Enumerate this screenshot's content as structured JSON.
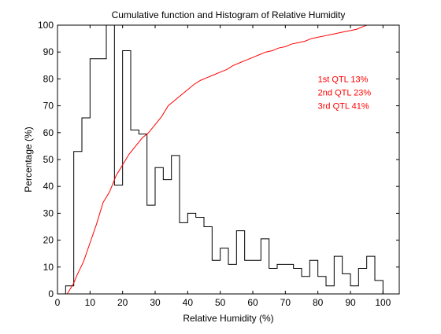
{
  "chart_data": {
    "type": "line",
    "title": "Cumulative function and Histogram of Relative Humidity",
    "xlabel": "Relative Humidity (%)",
    "ylabel": "Percentage (%)",
    "xlim": [
      0,
      105
    ],
    "ylim": [
      0,
      100
    ],
    "x_ticks": [
      0,
      10,
      20,
      30,
      40,
      50,
      60,
      70,
      80,
      90,
      100
    ],
    "y_ticks": [
      0,
      10,
      20,
      30,
      40,
      50,
      60,
      70,
      80,
      90,
      100
    ],
    "grid": false,
    "series": [
      {
        "kind": "histogram-stairs",
        "color": "#000000",
        "bin_edges": [
          2.5,
          5,
          7.5,
          10,
          12.5,
          15,
          17.5,
          20,
          22.5,
          25,
          27.5,
          30,
          32.5,
          35,
          37.5,
          40,
          42.5,
          45,
          47.5,
          50,
          52.5,
          55,
          57.5,
          60,
          62.5,
          65,
          67.5,
          70,
          72.5,
          75,
          77.5,
          80,
          82.5,
          85,
          87.5,
          90,
          92.5,
          95,
          97.5,
          100
        ],
        "values": [
          3,
          53,
          65.5,
          87.5,
          87.5,
          100,
          40.5,
          90.5,
          61,
          59.5,
          33,
          47,
          42.5,
          51.5,
          26.5,
          30,
          28.5,
          25,
          12.5,
          17,
          11,
          23.5,
          12.5,
          12.5,
          20.5,
          9.5,
          11,
          11,
          9.5,
          6.5,
          12.5,
          6.5,
          3,
          14,
          7.5,
          3,
          9.5,
          14,
          5
        ]
      },
      {
        "kind": "cumulative",
        "color": "#ff0000",
        "x": [
          0,
          2,
          3,
          4,
          5,
          6,
          8,
          10,
          12,
          14,
          16,
          17,
          18,
          19,
          20,
          22,
          24,
          26,
          28,
          30,
          32,
          34,
          36,
          38,
          40,
          42,
          44,
          46,
          48,
          50,
          52,
          54,
          56,
          58,
          60,
          62,
          64,
          66,
          68,
          70,
          72,
          74,
          76,
          78,
          80,
          82,
          84,
          86,
          88,
          90,
          92,
          94,
          95,
          97,
          100
        ],
        "y": [
          0,
          0,
          0,
          2,
          4,
          7,
          12,
          19,
          26,
          34,
          38,
          41,
          44,
          46,
          48,
          52,
          55,
          58,
          60,
          63,
          66,
          70,
          72,
          74,
          76,
          78,
          79.5,
          80.5,
          81.5,
          82.5,
          83.5,
          85,
          86,
          87,
          88,
          89,
          90,
          90.5,
          91.5,
          92,
          93,
          93.5,
          94,
          95,
          95.5,
          96,
          96.5,
          97,
          97.5,
          98,
          98.5,
          99.5,
          100,
          100,
          100
        ]
      }
    ],
    "annotations": [
      {
        "text": "1st QTL  13%",
        "x": 80,
        "y": 80,
        "color": "#ff0000"
      },
      {
        "text": "2nd QTL  23%",
        "x": 80,
        "y": 75,
        "color": "#ff0000"
      },
      {
        "text": "3rd QTL  41%",
        "x": 80,
        "y": 70,
        "color": "#ff0000"
      }
    ]
  }
}
